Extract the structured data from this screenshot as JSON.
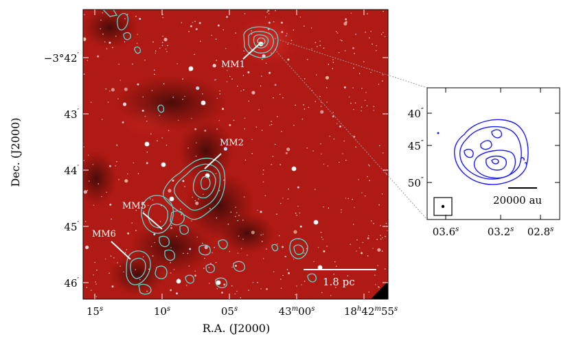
{
  "main_panel": {
    "xlabel": "R.A. (J2000)",
    "ylabel": "Dec. (J2000)",
    "x_ticks": [
      {
        "base": "15",
        "sup": "s"
      },
      {
        "base": "10",
        "sup": "s"
      },
      {
        "base": "05",
        "sup": "s"
      },
      {
        "base": "43",
        "sup": "m",
        "base2": "00",
        "sup2": "s"
      },
      {
        "base": "18",
        "sup": "h",
        "base2": "42",
        "sup2": "m",
        "base3": "55",
        "sup3": "s"
      }
    ],
    "y_ticks": [
      {
        "base": "−3°42",
        "sup": "′"
      },
      {
        "base": "43",
        "sup": "′"
      },
      {
        "base": "44",
        "sup": "′"
      },
      {
        "base": "45",
        "sup": "′"
      },
      {
        "base": "46",
        "sup": "′"
      }
    ],
    "sources": [
      "MM1",
      "MM2",
      "MM5",
      "MM6"
    ],
    "scale_bar": "1.8 pc",
    "colors": {
      "background": "#b01a14",
      "contour": "#5fd8d2",
      "label": "#ffffff"
    }
  },
  "inset": {
    "x_ticks": [
      {
        "base": "03.6",
        "sup": "s"
      },
      {
        "base": "03.2",
        "sup": "s"
      },
      {
        "base": "02.8",
        "sup": "s"
      }
    ],
    "y_ticks": [
      {
        "base": "40",
        "sup": "″"
      },
      {
        "base": "45",
        "sup": "″"
      },
      {
        "base": "50",
        "sup": "″"
      }
    ],
    "scale_bar": "20000 au",
    "colors": {
      "contour": "#1a1aff"
    }
  }
}
